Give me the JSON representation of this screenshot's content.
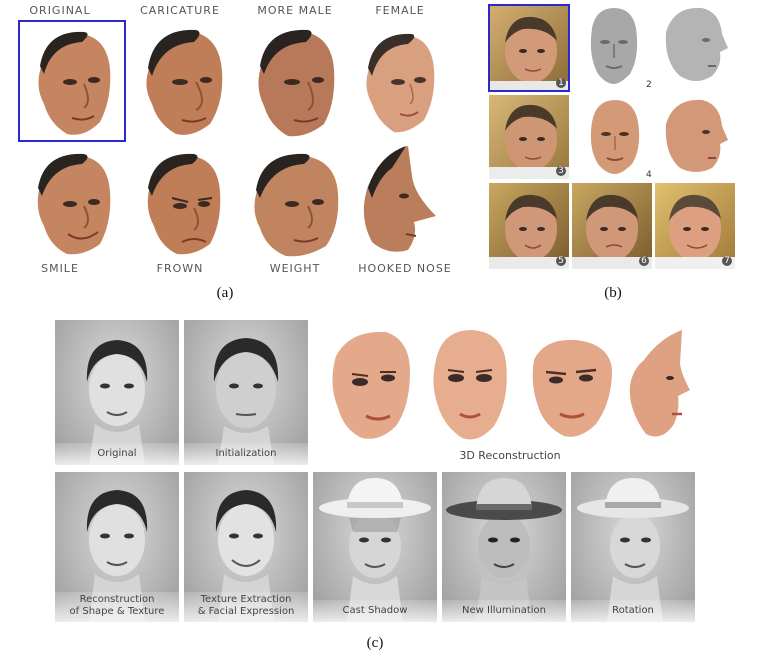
{
  "panel_a": {
    "top_labels": [
      "ORIGINAL",
      "CARICATURE",
      "MORE MALE",
      "FEMALE"
    ],
    "bottom_labels": [
      "SMILE",
      "FROWN",
      "WEIGHT",
      "HOOKED NOSE"
    ],
    "caption": "(a)"
  },
  "panel_b": {
    "numbers": [
      "1",
      "2",
      "3",
      "4",
      "5",
      "6",
      "7"
    ],
    "caption": "(b)"
  },
  "panel_c": {
    "labels": {
      "original": "Original",
      "initialization": "Initialization",
      "reconstruction_3d": "3D Reconstruction",
      "recon_line1": "Reconstruction",
      "recon_line2": "of Shape & Texture",
      "texture_line1": "Texture Extraction",
      "texture_line2": "& Facial Expression",
      "cast_shadow": "Cast Shadow",
      "new_illumination": "New Illumination",
      "rotation": "Rotation"
    },
    "caption": "(c)"
  },
  "colors": {
    "selection_border": "#2a2acc",
    "skin": "#c98a63",
    "hair": "#2a2420"
  }
}
